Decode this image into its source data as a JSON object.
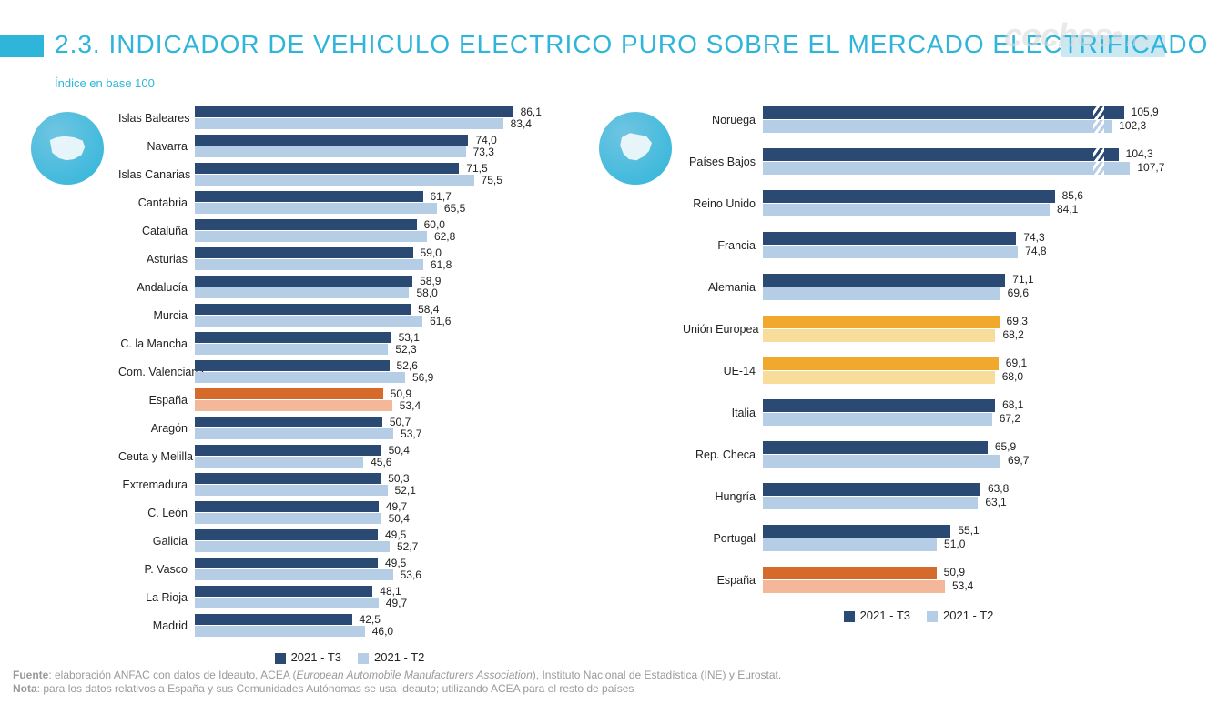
{
  "title": "2.3. INDICADOR DE VEHICULO ELECTRICO PURO SOBRE EL MERCADO ELECTRIFICADO",
  "subtitle": "Índice en base 100",
  "watermark": {
    "main": "coches",
    "suffix": ".net"
  },
  "colors": {
    "title": "#2fb5da",
    "band_left": "#2fb5da",
    "band_right": "#cce9f3",
    "series_t3": "#2a4a74",
    "series_t2": "#b6cee5",
    "highlight_t3_a": "#d56a2a",
    "highlight_t2_a": "#f3b89a",
    "highlight_t3_b": "#f0a92c",
    "highlight_t2_b": "#f8dd9a",
    "text": "#222222",
    "footer": "#9a9a9a"
  },
  "layout": {
    "left_bar_height": 12,
    "left_row_gap": 5,
    "left_axis_max": 100,
    "right_bar_height": 14,
    "right_row_gap": 16,
    "right_axis_max": 110,
    "right_overflow_hatch": true,
    "label_fontsize": 12.5,
    "value_fontsize": 12
  },
  "legend": {
    "t3": "2021 - T3",
    "t2": "2021 - T2"
  },
  "left": {
    "type": "grouped-horizontal-bar",
    "items": [
      {
        "label": "Islas Baleares",
        "t3": 86.1,
        "t2": 83.4,
        "fmt3": "86,1",
        "fmt2": "83,4"
      },
      {
        "label": "Navarra",
        "t3": 74.0,
        "t2": 73.3,
        "fmt3": "74,0",
        "fmt2": "73,3"
      },
      {
        "label": "Islas Canarias",
        "t3": 71.5,
        "t2": 75.5,
        "fmt3": "71,5",
        "fmt2": "75,5"
      },
      {
        "label": "Cantabria",
        "t3": 61.7,
        "t2": 65.5,
        "fmt3": "61,7",
        "fmt2": "65,5"
      },
      {
        "label": "Cataluña",
        "t3": 60.0,
        "t2": 62.8,
        "fmt3": "60,0",
        "fmt2": "62,8"
      },
      {
        "label": "Asturias",
        "t3": 59.0,
        "t2": 61.8,
        "fmt3": "59,0",
        "fmt2": "61,8"
      },
      {
        "label": "Andalucía",
        "t3": 58.9,
        "t2": 58.0,
        "fmt3": "58,9",
        "fmt2": "58,0"
      },
      {
        "label": "Murcia",
        "t3": 58.4,
        "t2": 61.6,
        "fmt3": "58,4",
        "fmt2": "61,6"
      },
      {
        "label": "C. la Mancha",
        "t3": 53.1,
        "t2": 52.3,
        "fmt3": "53,1",
        "fmt2": "52,3"
      },
      {
        "label": "Com. Valenciana",
        "t3": 52.6,
        "t2": 56.9,
        "fmt3": "52,6",
        "fmt2": "56,9"
      },
      {
        "label": "España",
        "t3": 50.9,
        "t2": 53.4,
        "fmt3": "50,9",
        "fmt2": "53,4",
        "highlight": "a"
      },
      {
        "label": "Aragón",
        "t3": 50.7,
        "t2": 53.7,
        "fmt3": "50,7",
        "fmt2": "53,7"
      },
      {
        "label": "Ceuta y Melilla",
        "t3": 50.4,
        "t2": 45.6,
        "fmt3": "50,4",
        "fmt2": "45,6"
      },
      {
        "label": "Extremadura",
        "t3": 50.3,
        "t2": 52.1,
        "fmt3": "50,3",
        "fmt2": "52,1"
      },
      {
        "label": "C. León",
        "t3": 49.7,
        "t2": 50.4,
        "fmt3": "49,7",
        "fmt2": "50,4"
      },
      {
        "label": "Galicia",
        "t3": 49.5,
        "t2": 52.7,
        "fmt3": "49,5",
        "fmt2": "52,7"
      },
      {
        "label": "P. Vasco",
        "t3": 49.5,
        "t2": 53.6,
        "fmt3": "49,5",
        "fmt2": "53,6"
      },
      {
        "label": "La Rioja",
        "t3": 48.1,
        "t2": 49.7,
        "fmt3": "48,1",
        "fmt2": "49,7"
      },
      {
        "label": "Madrid",
        "t3": 42.5,
        "t2": 46.0,
        "fmt3": "42,5",
        "fmt2": "46,0"
      }
    ]
  },
  "right": {
    "type": "grouped-horizontal-bar",
    "items": [
      {
        "label": "Noruega",
        "t3": 105.9,
        "t2": 102.3,
        "fmt3": "105,9",
        "fmt2": "102,3"
      },
      {
        "label": "Países Bajos",
        "t3": 104.3,
        "t2": 107.7,
        "fmt3": "104,3",
        "fmt2": "107,7"
      },
      {
        "label": "Reino Unido",
        "t3": 85.6,
        "t2": 84.1,
        "fmt3": "85,6",
        "fmt2": "84,1"
      },
      {
        "label": "Francia",
        "t3": 74.3,
        "t2": 74.8,
        "fmt3": "74,3",
        "fmt2": "74,8"
      },
      {
        "label": "Alemania",
        "t3": 71.1,
        "t2": 69.6,
        "fmt3": "71,1",
        "fmt2": "69,6"
      },
      {
        "label": "Unión Europea",
        "t3": 69.3,
        "t2": 68.2,
        "fmt3": "69,3",
        "fmt2": "68,2",
        "highlight": "b"
      },
      {
        "label": "UE-14",
        "t3": 69.1,
        "t2": 68.0,
        "fmt3": "69,1",
        "fmt2": "68,0",
        "highlight": "b"
      },
      {
        "label": "Italia",
        "t3": 68.1,
        "t2": 67.2,
        "fmt3": "68,1",
        "fmt2": "67,2"
      },
      {
        "label": "Rep. Checa",
        "t3": 65.9,
        "t2": 69.7,
        "fmt3": "65,9",
        "fmt2": "69,7"
      },
      {
        "label": "Hungría",
        "t3": 63.8,
        "t2": 63.1,
        "fmt3": "63,8",
        "fmt2": "63,1"
      },
      {
        "label": "Portugal",
        "t3": 55.1,
        "t2": 51.0,
        "fmt3": "55,1",
        "fmt2": "51,0"
      },
      {
        "label": "España",
        "t3": 50.9,
        "t2": 53.4,
        "fmt3": "50,9",
        "fmt2": "53,4",
        "highlight": "a"
      }
    ]
  },
  "footer": {
    "fuente_label": "Fuente",
    "fuente_text_pre": ": elaboración ANFAC con datos de Ideauto, ACEA (",
    "fuente_text_em": "European Automobile Manufacturers Association",
    "fuente_text_post": "), Instituto Nacional de Estadística (INE) y Eurostat.",
    "nota_label": "Nota",
    "nota_text": ": para los datos relativos a España y sus Comunidades Autónomas se usa Ideauto; utilizando ACEA para el resto de países"
  }
}
